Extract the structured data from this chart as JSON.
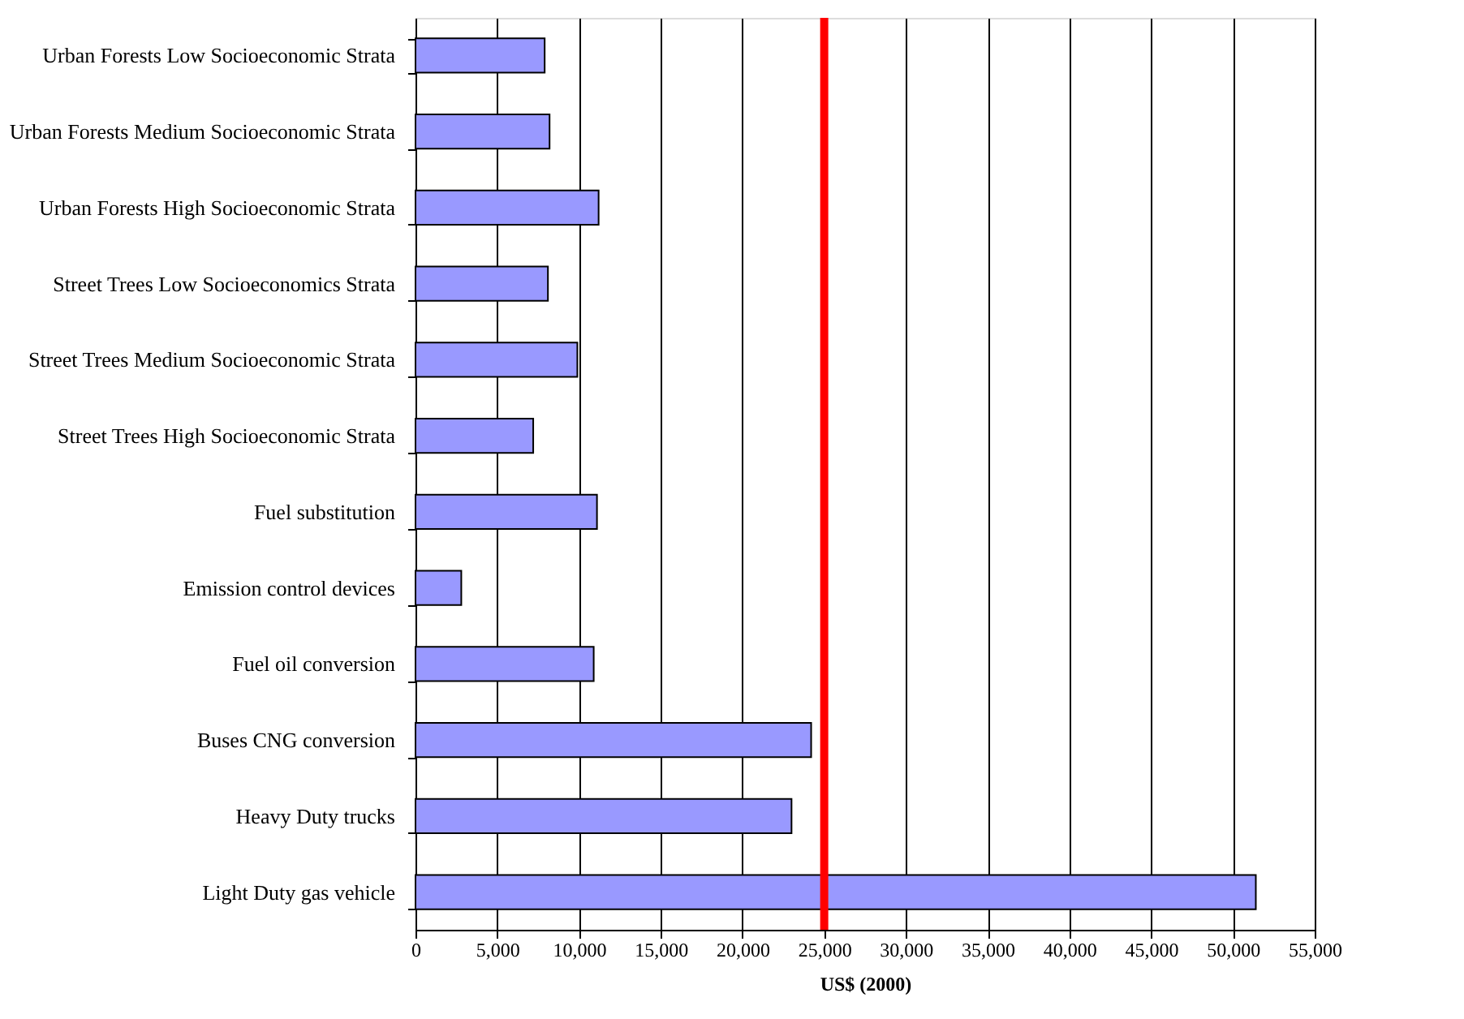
{
  "chart_data": {
    "type": "bar",
    "orientation": "horizontal",
    "xlabel": "US$ (2000)",
    "categories": [
      "Urban Forests Low Socioeconomic Strata",
      "Urban Forests Medium Socioeconomic Strata",
      "Urban Forests High Socioeconomic Strata",
      "Street Trees Low Socioeconomics Strata",
      "Street Trees Medium Socioeconomic Strata",
      "Street Trees High Socioeconomic Strata",
      "Fuel substitution",
      "Emission control devices",
      "Fuel oil conversion",
      "Buses CNG conversion",
      "Heavy Duty trucks",
      "Light Duty gas vehicle"
    ],
    "values": [
      7900,
      8200,
      11200,
      8100,
      9900,
      7200,
      11100,
      2800,
      10900,
      24200,
      23000,
      51400
    ],
    "color": "#9999ff",
    "xlim": [
      0,
      55000
    ],
    "xticks": [
      0,
      {
        "value": 5000,
        "label": "5,000"
      },
      {
        "value": 10000,
        "label": "10,000"
      },
      {
        "value": 15000,
        "label": "15,000"
      },
      {
        "value": 20000,
        "label": "20,000"
      },
      {
        "value": 25000,
        "label": "25,000"
      },
      {
        "value": 30000,
        "label": "30,000"
      },
      {
        "value": 35000,
        "label": "35,000"
      },
      {
        "value": 40000,
        "label": "40,000"
      },
      {
        "value": 45000,
        "label": "45,000"
      },
      {
        "value": 50000,
        "label": "50,000"
      },
      {
        "value": 55000,
        "label": "55,000"
      }
    ],
    "grid": "x",
    "ref_lines": [
      {
        "axis": "x",
        "value": 25000,
        "color": "#ff0000"
      }
    ]
  }
}
